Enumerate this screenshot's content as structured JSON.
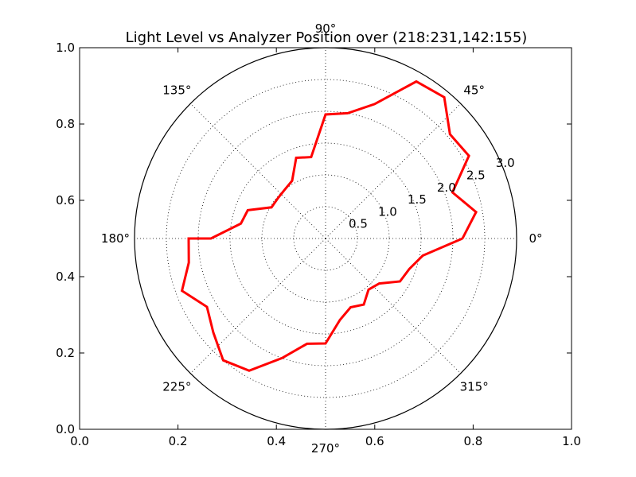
{
  "chart_data": {
    "type": "line",
    "projection": "polar",
    "title": "Light Level vs Analyzer Position over (218:231,142:155)",
    "rmax": 3.0,
    "r_ticks": [
      "0.5",
      "1.0",
      "1.5",
      "2.0",
      "2.5",
      "3.0"
    ],
    "r_tick_values": [
      0.5,
      1.0,
      1.5,
      2.0,
      2.5,
      3.0
    ],
    "theta_ticks": [
      "0°",
      "45°",
      "90°",
      "135°",
      "180°",
      "225°",
      "270°",
      "315°"
    ],
    "theta_tick_values": [
      0,
      45,
      90,
      135,
      180,
      225,
      270,
      315
    ],
    "background_axes": {
      "x_ticks": [
        "0.0",
        "0.2",
        "0.4",
        "0.6",
        "0.8",
        "1.0"
      ],
      "y_ticks": [
        "0.0",
        "0.2",
        "0.4",
        "0.6",
        "0.8",
        "1.0"
      ],
      "xlim": [
        0,
        1
      ],
      "ylim": [
        0,
        1
      ]
    },
    "grid": true,
    "series": [
      {
        "color": "#ff0000",
        "points": [
          {
            "theta": 0,
            "r": 2.15
          },
          {
            "theta": 10,
            "r": 2.4
          },
          {
            "theta": 20,
            "r": 2.12
          },
          {
            "theta": 30,
            "r": 2.6
          },
          {
            "theta": 40,
            "r": 2.55
          },
          {
            "theta": 50,
            "r": 2.9
          },
          {
            "theta": 60,
            "r": 2.85
          },
          {
            "theta": 70,
            "r": 2.25
          },
          {
            "theta": 80,
            "r": 2.0
          },
          {
            "theta": 90,
            "r": 1.95
          },
          {
            "theta": 100,
            "r": 1.3
          },
          {
            "theta": 110,
            "r": 1.35
          },
          {
            "theta": 120,
            "r": 1.05
          },
          {
            "theta": 130,
            "r": 1.0
          },
          {
            "theta": 140,
            "r": 0.98
          },
          {
            "theta": 150,
            "r": 0.98
          },
          {
            "theta": 160,
            "r": 1.3
          },
          {
            "theta": 170,
            "r": 1.35
          },
          {
            "theta": 180,
            "r": 1.8
          },
          {
            "theta": 180,
            "r": 2.15
          },
          {
            "theta": 190,
            "r": 2.18
          },
          {
            "theta": 200,
            "r": 2.4
          },
          {
            "theta": 210,
            "r": 2.15
          },
          {
            "theta": 220,
            "r": 2.3
          },
          {
            "theta": 230,
            "r": 2.5
          },
          {
            "theta": 240,
            "r": 2.4
          },
          {
            "theta": 250,
            "r": 2.0
          },
          {
            "theta": 260,
            "r": 1.68
          },
          {
            "theta": 270,
            "r": 1.65
          },
          {
            "theta": 280,
            "r": 1.3
          },
          {
            "theta": 290,
            "r": 1.15
          },
          {
            "theta": 300,
            "r": 1.2
          },
          {
            "theta": 310,
            "r": 1.05
          },
          {
            "theta": 320,
            "r": 1.1
          },
          {
            "theta": 330,
            "r": 1.35
          },
          {
            "theta": 340,
            "r": 1.4
          },
          {
            "theta": 350,
            "r": 1.55
          },
          {
            "theta": 360,
            "r": 2.15
          }
        ]
      }
    ]
  }
}
